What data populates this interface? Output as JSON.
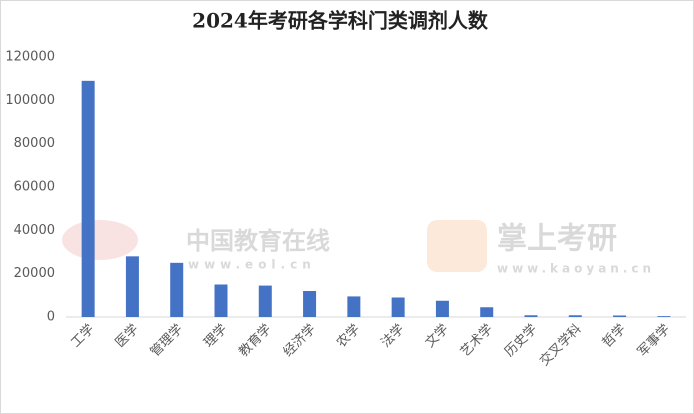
{
  "chart_data": {
    "type": "bar",
    "title": "2024年考研各学科门类调剂人数",
    "categories": [
      "工学",
      "医学",
      "管理学",
      "理学",
      "教育学",
      "经济学",
      "农学",
      "法学",
      "文学",
      "艺术学",
      "历史学",
      "交叉学科",
      "哲学",
      "军事学"
    ],
    "values": [
      109000,
      28000,
      25000,
      15000,
      14500,
      12000,
      9500,
      9000,
      7500,
      4500,
      800,
      800,
      700,
      400
    ],
    "color": "#4472c4",
    "ylim": [
      0,
      120000
    ],
    "yticks": [
      0,
      20000,
      40000,
      60000,
      80000,
      100000,
      120000
    ],
    "grid": false,
    "watermarks": [
      "中国教育在线",
      "www.eol.cn",
      "掌上考研",
      "www.kaoyan.cn"
    ]
  }
}
